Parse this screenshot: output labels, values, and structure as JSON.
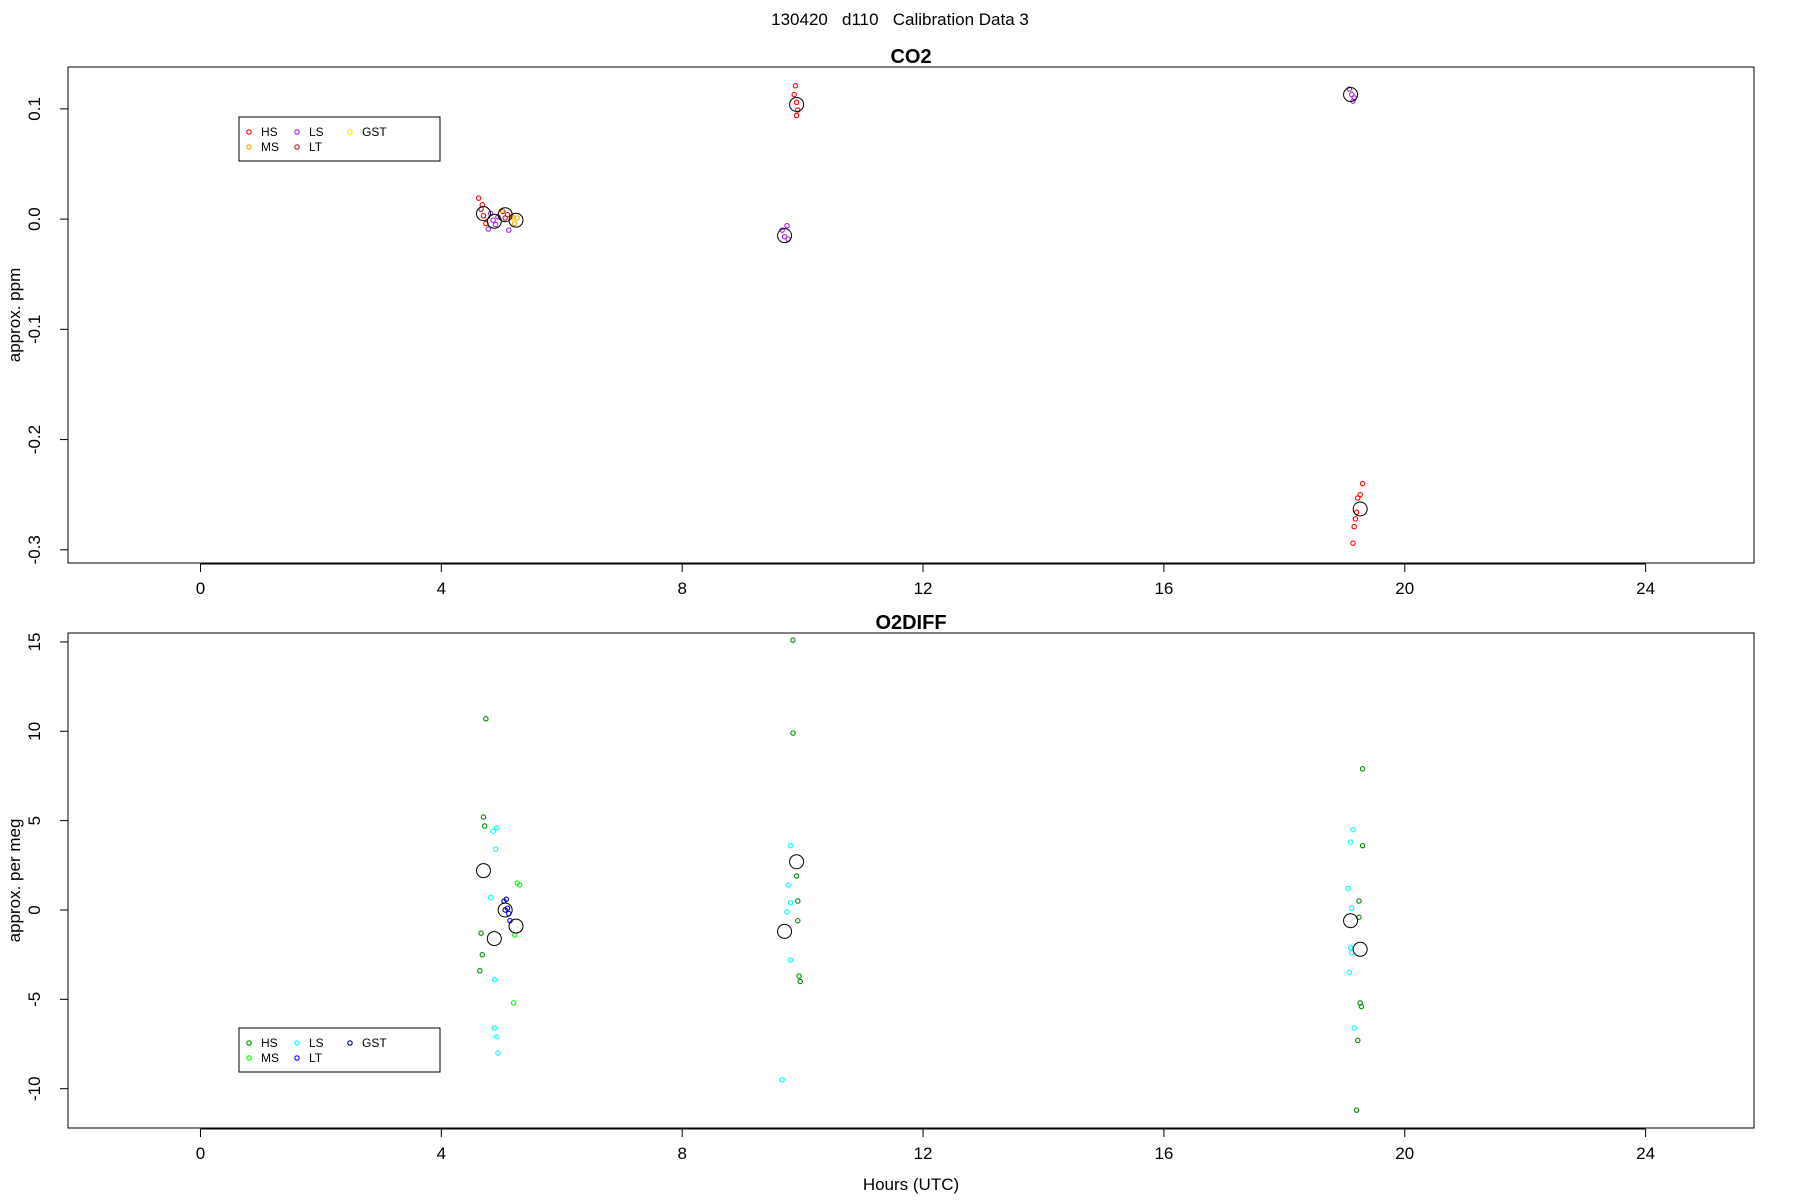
{
  "figure": {
    "title": "130420   d110   Calibration Data 3"
  },
  "chart_data": [
    {
      "type": "scatter",
      "title": "CO2",
      "xlabel": "",
      "ylabel": "approx. ppm",
      "xlim": [
        -2.2,
        25.8
      ],
      "ylim": [
        -0.312,
        0.138
      ],
      "xticks": [
        0,
        4,
        8,
        12,
        16,
        20,
        24
      ],
      "xtick_labels": [
        "0",
        "4",
        "8",
        "12",
        "16",
        "20",
        "24"
      ],
      "yticks": [
        -0.3,
        -0.2,
        -0.1,
        0.0,
        0.1
      ],
      "ytick_labels": [
        "-0.3",
        "-0.2",
        "-0.1",
        "0.0",
        "0.1"
      ],
      "grid": false,
      "legend": {
        "placement": "top-left",
        "entries": [
          {
            "name": "HS",
            "color": "#ff0000"
          },
          {
            "name": "MS",
            "color": "#ffa500"
          },
          {
            "name": "LS",
            "color": "#a020f0"
          },
          {
            "name": "LT",
            "color": "#b22222"
          },
          {
            "name": "GST",
            "color": "#ffd700"
          }
        ]
      },
      "series": [
        {
          "name": "HS",
          "color": "#ff0000",
          "points": [
            [
              4.62,
              0.019
            ],
            [
              4.68,
              0.013
            ],
            [
              4.7,
              0.003
            ],
            [
              4.74,
              -0.004
            ],
            [
              9.88,
              0.121
            ],
            [
              9.86,
              0.113
            ],
            [
              9.9,
              0.106
            ],
            [
              9.92,
              0.099
            ],
            [
              9.9,
              0.094
            ],
            [
              19.3,
              -0.24
            ],
            [
              19.26,
              -0.25
            ],
            [
              19.22,
              -0.253
            ],
            [
              19.2,
              -0.266
            ],
            [
              19.18,
              -0.272
            ],
            [
              19.16,
              -0.279
            ],
            [
              19.14,
              -0.294
            ]
          ]
        },
        {
          "name": "MS",
          "color": "#ffa500",
          "points": [
            [
              5.18,
              0.002
            ],
            [
              5.22,
              -0.004
            ],
            [
              5.26,
              0.001
            ]
          ]
        },
        {
          "name": "LS",
          "color": "#a020f0",
          "points": [
            [
              4.78,
              -0.009
            ],
            [
              4.82,
              0.005
            ],
            [
              4.86,
              -0.001
            ],
            [
              4.9,
              -0.005
            ],
            [
              4.94,
              0.002
            ],
            [
              5.12,
              -0.01
            ],
            [
              9.66,
              -0.01
            ],
            [
              9.7,
              -0.016
            ],
            [
              9.74,
              -0.006
            ],
            [
              9.76,
              -0.018
            ],
            [
              19.08,
              0.118
            ],
            [
              19.12,
              0.113
            ],
            [
              19.14,
              0.107
            ],
            [
              19.16,
              0.11
            ]
          ]
        },
        {
          "name": "LT",
          "color": "#b22222",
          "points": [
            [
              4.66,
              0.009
            ],
            [
              5.02,
              0.007
            ],
            [
              5.06,
              0.001
            ],
            [
              5.1,
              0.004
            ]
          ]
        },
        {
          "name": "GST",
          "color": "#ffd700",
          "points": [
            [
              5.0,
              0.008
            ],
            [
              5.2,
              0.0
            ]
          ]
        }
      ],
      "means": [
        [
          4.7,
          0.005
        ],
        [
          4.88,
          -0.002
        ],
        [
          5.06,
          0.004
        ],
        [
          5.24,
          -0.001
        ],
        [
          9.7,
          -0.015
        ],
        [
          9.9,
          0.104
        ],
        [
          19.1,
          0.113
        ],
        [
          19.26,
          -0.263
        ]
      ]
    },
    {
      "type": "scatter",
      "title": "O2DIFF",
      "xlabel": "Hours (UTC)",
      "ylabel": "approx. per meg",
      "xlim": [
        -2.2,
        25.8
      ],
      "ylim": [
        -12.2,
        15.5
      ],
      "xticks": [
        0,
        4,
        8,
        12,
        16,
        20,
        24
      ],
      "xtick_labels": [
        "0",
        "4",
        "8",
        "12",
        "16",
        "20",
        "24"
      ],
      "yticks": [
        -10,
        -5,
        0,
        5,
        10,
        15
      ],
      "ytick_labels": [
        "-10",
        "-5",
        "0",
        "5",
        "10",
        "15"
      ],
      "grid": false,
      "legend": {
        "placement": "bottom-left",
        "entries": [
          {
            "name": "HS",
            "color": "#008b00"
          },
          {
            "name": "MS",
            "color": "#00ff00"
          },
          {
            "name": "LS",
            "color": "#00ffff"
          },
          {
            "name": "LT",
            "color": "#0000ff"
          },
          {
            "name": "GST",
            "color": "#00008b"
          }
        ]
      },
      "series": [
        {
          "name": "HS",
          "color": "#008b00",
          "points": [
            [
              4.74,
              10.7
            ],
            [
              4.7,
              5.2
            ],
            [
              4.72,
              4.7
            ],
            [
              4.66,
              -1.3
            ],
            [
              4.68,
              -2.5
            ],
            [
              4.64,
              -3.4
            ],
            [
              9.84,
              15.1
            ],
            [
              9.84,
              9.9
            ],
            [
              9.9,
              1.9
            ],
            [
              9.92,
              0.5
            ],
            [
              9.92,
              -0.6
            ],
            [
              9.94,
              -3.7
            ],
            [
              9.96,
              -4.0
            ],
            [
              19.3,
              7.9
            ],
            [
              19.3,
              3.6
            ],
            [
              19.24,
              0.5
            ],
            [
              19.24,
              -0.4
            ],
            [
              19.26,
              -5.2
            ],
            [
              19.28,
              -5.4
            ],
            [
              19.22,
              -7.3
            ],
            [
              19.2,
              -11.2
            ]
          ]
        },
        {
          "name": "MS",
          "color": "#00ff00",
          "points": [
            [
              5.26,
              1.5
            ],
            [
              5.3,
              1.4
            ],
            [
              5.22,
              -1.4
            ],
            [
              5.2,
              -5.2
            ]
          ]
        },
        {
          "name": "LS",
          "color": "#00ffff",
          "points": [
            [
              4.86,
              4.4
            ],
            [
              4.92,
              4.6
            ],
            [
              4.9,
              3.4
            ],
            [
              4.82,
              0.7
            ],
            [
              4.88,
              -3.9
            ],
            [
              4.88,
              -6.6
            ],
            [
              4.92,
              -7.1
            ],
            [
              4.94,
              -8.0
            ],
            [
              9.8,
              3.6
            ],
            [
              9.76,
              1.4
            ],
            [
              9.8,
              0.4
            ],
            [
              9.74,
              -0.1
            ],
            [
              9.8,
              -2.8
            ],
            [
              9.66,
              -9.5
            ],
            [
              19.14,
              4.5
            ],
            [
              19.1,
              3.8
            ],
            [
              19.06,
              1.2
            ],
            [
              19.12,
              0.1
            ],
            [
              19.1,
              -2.1
            ],
            [
              19.12,
              -2.4
            ],
            [
              19.08,
              -3.5
            ],
            [
              19.16,
              -6.6
            ]
          ]
        },
        {
          "name": "LT",
          "color": "#0000ff",
          "points": [
            [
              5.08,
              0.6
            ],
            [
              5.1,
              0.1
            ],
            [
              5.12,
              -0.2
            ],
            [
              5.14,
              -0.6
            ]
          ]
        },
        {
          "name": "GST",
          "color": "#00008b",
          "points": [
            [
              5.04,
              0.5
            ],
            [
              5.06,
              0.0
            ]
          ]
        }
      ],
      "means": [
        [
          4.7,
          2.2
        ],
        [
          4.88,
          -1.6
        ],
        [
          5.06,
          0.0
        ],
        [
          5.24,
          -0.9
        ],
        [
          9.7,
          -1.2
        ],
        [
          9.9,
          2.7
        ],
        [
          19.1,
          -0.6
        ],
        [
          19.26,
          -2.2
        ]
      ]
    }
  ]
}
